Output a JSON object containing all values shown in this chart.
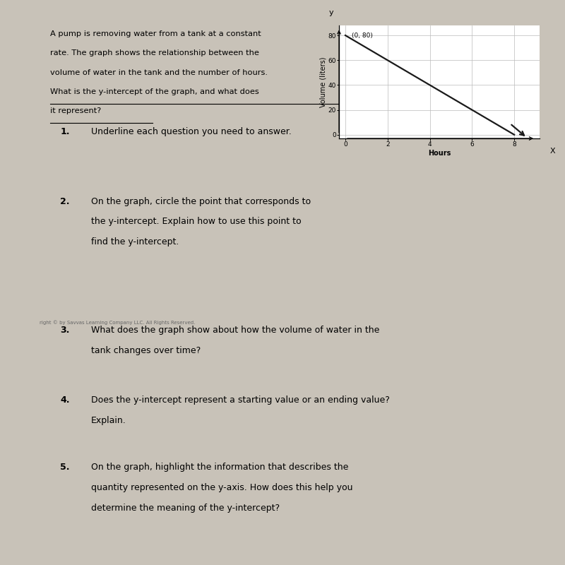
{
  "background_color": "#c8c2b8",
  "paper_color": "#e8e3da",
  "title_text_lines": [
    "A pump is removing water from a tank at a constant",
    "rate. The graph shows the relationship between the",
    "volume of water in the tank and the number of hours.",
    "What is the y-intercept of the graph, and what does",
    "it represent?"
  ],
  "underline_start_line": 3,
  "questions": [
    {
      "number": "1.",
      "text": "Underline each question you need to answer."
    },
    {
      "number": "2.",
      "text": "On the graph, circle the point that corresponds to\nthe y-intercept. Explain how to use this point to\nfind the y-intercept."
    },
    {
      "number": "3.",
      "text": "What does the graph show about how the volume of water in the\ntank changes over time?"
    },
    {
      "number": "4.",
      "text": "Does the y-intercept represent a starting value or an ending value?\nExplain."
    },
    {
      "number": "5.",
      "text": "On the graph, highlight the information that describes the\nquantity represented on the y-axis. How does this help you\ndetermine the meaning of the y-intercept?"
    }
  ],
  "copyright_text": "right © by Savvas Learning Company LLC. All Rights Reserved.",
  "graph": {
    "x_data": [
      0,
      8
    ],
    "y_data": [
      80,
      0
    ],
    "x_label": "Hours",
    "y_label": "Volume (liters)",
    "annotation": "(0, 80)",
    "x_ticks": [
      0,
      2,
      4,
      6,
      8
    ],
    "y_ticks": [
      0,
      20,
      40,
      60,
      80
    ],
    "x_lim": [
      -0.3,
      9.2
    ],
    "y_lim": [
      -3,
      88
    ],
    "line_color": "#1a1a1a",
    "grid_color": "#bbbbbb",
    "tick_fontsize": 6.5,
    "label_fontsize": 7
  }
}
